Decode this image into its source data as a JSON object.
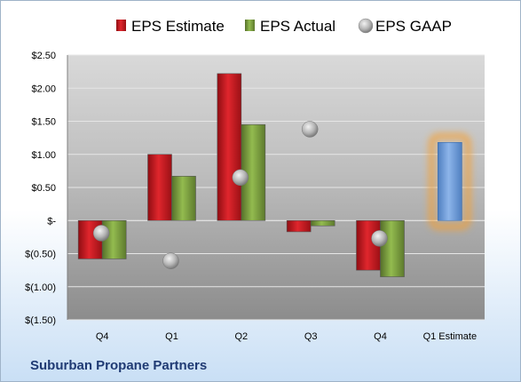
{
  "company_name": "Suburban Propane Partners",
  "chart_data": {
    "type": "bar",
    "categories": [
      "Q4",
      "Q1",
      "Q2",
      "Q3",
      "Q4",
      "Q1 Estimate"
    ],
    "series": [
      {
        "name": "EPS Estimate",
        "color": "#c0161c",
        "kind": "bar",
        "values": [
          -0.58,
          1.0,
          2.22,
          -0.17,
          -0.75,
          null
        ]
      },
      {
        "name": "EPS Actual",
        "color": "#79a03c",
        "kind": "bar",
        "values": [
          -0.58,
          0.67,
          1.45,
          -0.08,
          -0.85,
          null
        ]
      },
      {
        "name": "EPS GAAP",
        "color": "#b9b9b9",
        "kind": "marker",
        "values": [
          -0.19,
          -0.61,
          0.65,
          1.38,
          -0.27,
          null
        ]
      },
      {
        "name": "",
        "color": "#6b9bd8",
        "kind": "estimate-bar",
        "values": [
          null,
          null,
          null,
          null,
          null,
          1.18
        ]
      }
    ],
    "yticks": [
      "$2.50",
      "$2.00",
      "$1.50",
      "$1.00",
      "$0.50",
      "$-",
      "$(0.50)",
      "$(1.00)",
      "$(1.50)"
    ],
    "ylim": [
      -1.5,
      2.5
    ],
    "legend_position": "top",
    "grid": true,
    "highlight_color": "#f5a033"
  }
}
